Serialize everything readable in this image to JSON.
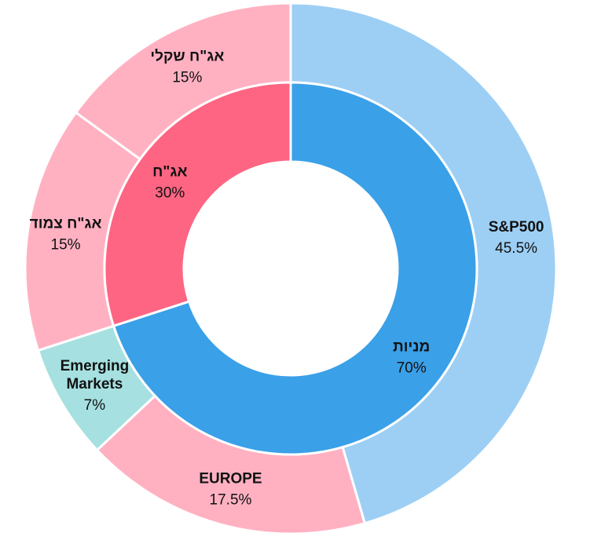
{
  "chart_data": {
    "type": "pie",
    "variant": "nested-donut",
    "start_angle_deg": 0,
    "direction": "clockwise",
    "inner_ring": [
      {
        "name": "מניות",
        "value": 70,
        "value_label": "70%",
        "color": "#3aa0e8"
      },
      {
        "name": "אג\"ח",
        "value": 30,
        "value_label": "30%",
        "color": "#fe6583"
      }
    ],
    "outer_ring": [
      {
        "name": "S&P500",
        "value": 45.5,
        "value_label": "45.5%",
        "color": "#9dcff5"
      },
      {
        "name": "EUROPE",
        "value": 17.5,
        "value_label": "17.5%",
        "color": "#ffb1c2"
      },
      {
        "name": "Emerging Markets",
        "name_lines": [
          "Emerging",
          "Markets"
        ],
        "value": 7,
        "value_label": "7%",
        "color": "#a6e0e0"
      },
      {
        "name": "אג\"ח צמוד",
        "value": 15,
        "value_label": "15%",
        "color": "#ffb1c2"
      },
      {
        "name": "אג\"ח שקלי",
        "value": 15,
        "value_label": "15%",
        "color": "#ffb1c2"
      }
    ]
  }
}
